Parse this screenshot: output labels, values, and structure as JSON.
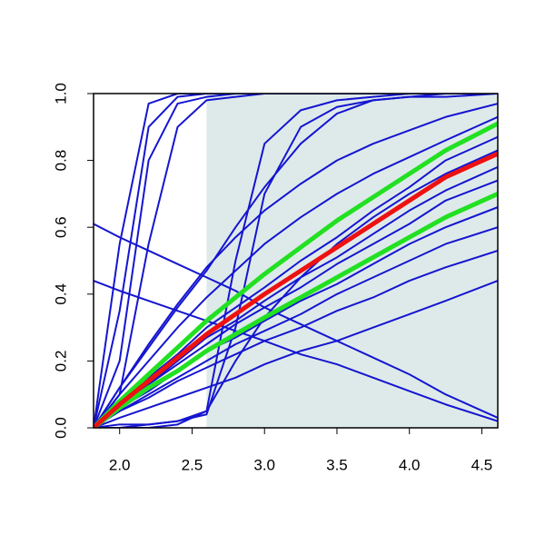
{
  "chart_data": {
    "type": "line",
    "x": [
      1.82,
      2.0,
      2.2,
      2.4,
      2.6,
      2.8,
      3.0,
      3.25,
      3.5,
      3.75,
      4.0,
      4.25,
      4.61
    ],
    "xlim": [
      1.82,
      4.61
    ],
    "ylim": [
      0,
      1
    ],
    "xticks": [
      {
        "value": 2,
        "label": "2.0"
      },
      2.5,
      {
        "value": 3,
        "label": "3.0"
      },
      3.5,
      {
        "value": 4,
        "label": "4.0"
      },
      4.5
    ],
    "yticks": [
      {
        "value": 0,
        "label": "0.0"
      },
      0.2,
      0.4,
      0.6,
      0.8,
      {
        "value": 1,
        "label": "1.0"
      }
    ],
    "shaded_region": {
      "x": [
        2.6,
        4.61
      ],
      "color": "#deeaea"
    },
    "series": [
      {
        "color": "#1515d0",
        "width": 2,
        "values": [
          0,
          0.55,
          0.97,
          1,
          1,
          1,
          1,
          1,
          1,
          1,
          1,
          1,
          1
        ]
      },
      {
        "color": "#1515d0",
        "width": 2,
        "values": [
          0,
          0.35,
          0.9,
          0.99,
          1,
          1,
          1,
          1,
          1,
          1,
          1,
          1,
          1
        ]
      },
      {
        "color": "#1515d0",
        "width": 2,
        "values": [
          0,
          0.2,
          0.8,
          0.97,
          0.99,
          1,
          1,
          1,
          1,
          1,
          1,
          1,
          1
        ]
      },
      {
        "color": "#1515d0",
        "width": 2,
        "values": [
          0,
          0.1,
          0.55,
          0.9,
          0.98,
          0.99,
          1,
          1,
          1,
          1,
          1,
          1,
          1
        ]
      },
      {
        "color": "#1515d0",
        "width": 2,
        "values": [
          0,
          0.01,
          0.01,
          0.02,
          0.05,
          0.5,
          0.85,
          0.95,
          0.98,
          0.99,
          1,
          1,
          1
        ]
      },
      {
        "color": "#1515d0",
        "width": 2,
        "values": [
          0,
          0,
          0.01,
          0.02,
          0.04,
          0.3,
          0.7,
          0.9,
          0.96,
          0.98,
          0.99,
          0.99,
          1
        ]
      },
      {
        "color": "#1515d0",
        "width": 2,
        "values": [
          0.61,
          0.57,
          0.53,
          0.49,
          0.45,
          0.41,
          0.36,
          0.31,
          0.26,
          0.21,
          0.16,
          0.1,
          0.03
        ]
      },
      {
        "color": "#1515d0",
        "width": 2,
        "values": [
          0.44,
          0.41,
          0.38,
          0.35,
          0.32,
          0.29,
          0.26,
          0.22,
          0.19,
          0.15,
          0.11,
          0.07,
          0.02
        ]
      },
      {
        "color": "#1515d0",
        "width": 2,
        "values": [
          0,
          0.03,
          0.06,
          0.09,
          0.12,
          0.15,
          0.19,
          0.23,
          0.26,
          0.3,
          0.34,
          0.38,
          0.44
        ]
      },
      {
        "color": "#1515d0",
        "width": 2,
        "values": [
          0,
          0.12,
          0.25,
          0.37,
          0.48,
          0.57,
          0.65,
          0.73,
          0.8,
          0.85,
          0.89,
          0.93,
          0.97
        ]
      },
      {
        "color": "#1515d0",
        "width": 2,
        "values": [
          0,
          0.1,
          0.2,
          0.3,
          0.39,
          0.47,
          0.55,
          0.63,
          0.7,
          0.76,
          0.81,
          0.86,
          0.93
        ]
      },
      {
        "color": "#1515d0",
        "width": 2,
        "values": [
          0,
          0.12,
          0.24,
          0.36,
          0.47,
          0.6,
          0.72,
          0.85,
          0.94,
          0.98,
          0.99,
          1,
          1
        ]
      },
      {
        "color": "#1515d0",
        "width": 2,
        "values": [
          0,
          0,
          0,
          0.01,
          0.05,
          0.2,
          0.33,
          0.45,
          0.55,
          0.63,
          0.7,
          0.76,
          0.83
        ]
      },
      {
        "color": "#1515d0",
        "width": 2,
        "values": [
          0,
          0.07,
          0.15,
          0.22,
          0.3,
          0.36,
          0.42,
          0.5,
          0.57,
          0.65,
          0.72,
          0.8,
          0.87
        ]
      },
      {
        "color": "#1515d0",
        "width": 2,
        "values": [
          0,
          0.07,
          0.13,
          0.2,
          0.27,
          0.32,
          0.38,
          0.45,
          0.51,
          0.58,
          0.65,
          0.71,
          0.78
        ]
      },
      {
        "color": "#1515d0",
        "width": 2,
        "values": [
          0,
          0.06,
          0.13,
          0.19,
          0.25,
          0.31,
          0.36,
          0.42,
          0.49,
          0.55,
          0.61,
          0.68,
          0.74
        ]
      },
      {
        "color": "#1515d0",
        "width": 2,
        "values": [
          0,
          0.06,
          0.11,
          0.17,
          0.23,
          0.27,
          0.32,
          0.38,
          0.43,
          0.49,
          0.55,
          0.6,
          0.66
        ]
      },
      {
        "color": "#1515d0",
        "width": 2,
        "values": [
          0,
          0.05,
          0.1,
          0.15,
          0.2,
          0.25,
          0.29,
          0.34,
          0.4,
          0.45,
          0.5,
          0.55,
          0.6
        ]
      },
      {
        "color": "#1515d0",
        "width": 2,
        "values": [
          0,
          0.05,
          0.09,
          0.14,
          0.18,
          0.22,
          0.26,
          0.3,
          0.35,
          0.39,
          0.44,
          0.48,
          0.53
        ]
      },
      {
        "color": "#22e022",
        "width": 5,
        "values": [
          0,
          0.08,
          0.16,
          0.24,
          0.32,
          0.39,
          0.46,
          0.54,
          0.62,
          0.69,
          0.76,
          0.83,
          0.91
        ]
      },
      {
        "color": "#22e022",
        "width": 5,
        "values": [
          0,
          0.06,
          0.12,
          0.17,
          0.23,
          0.28,
          0.33,
          0.39,
          0.45,
          0.51,
          0.57,
          0.63,
          0.7
        ]
      },
      {
        "color": "#ee1111",
        "width": 5,
        "values": [
          0,
          0.07,
          0.14,
          0.21,
          0.28,
          0.34,
          0.4,
          0.47,
          0.54,
          0.61,
          0.68,
          0.75,
          0.82
        ]
      }
    ]
  }
}
